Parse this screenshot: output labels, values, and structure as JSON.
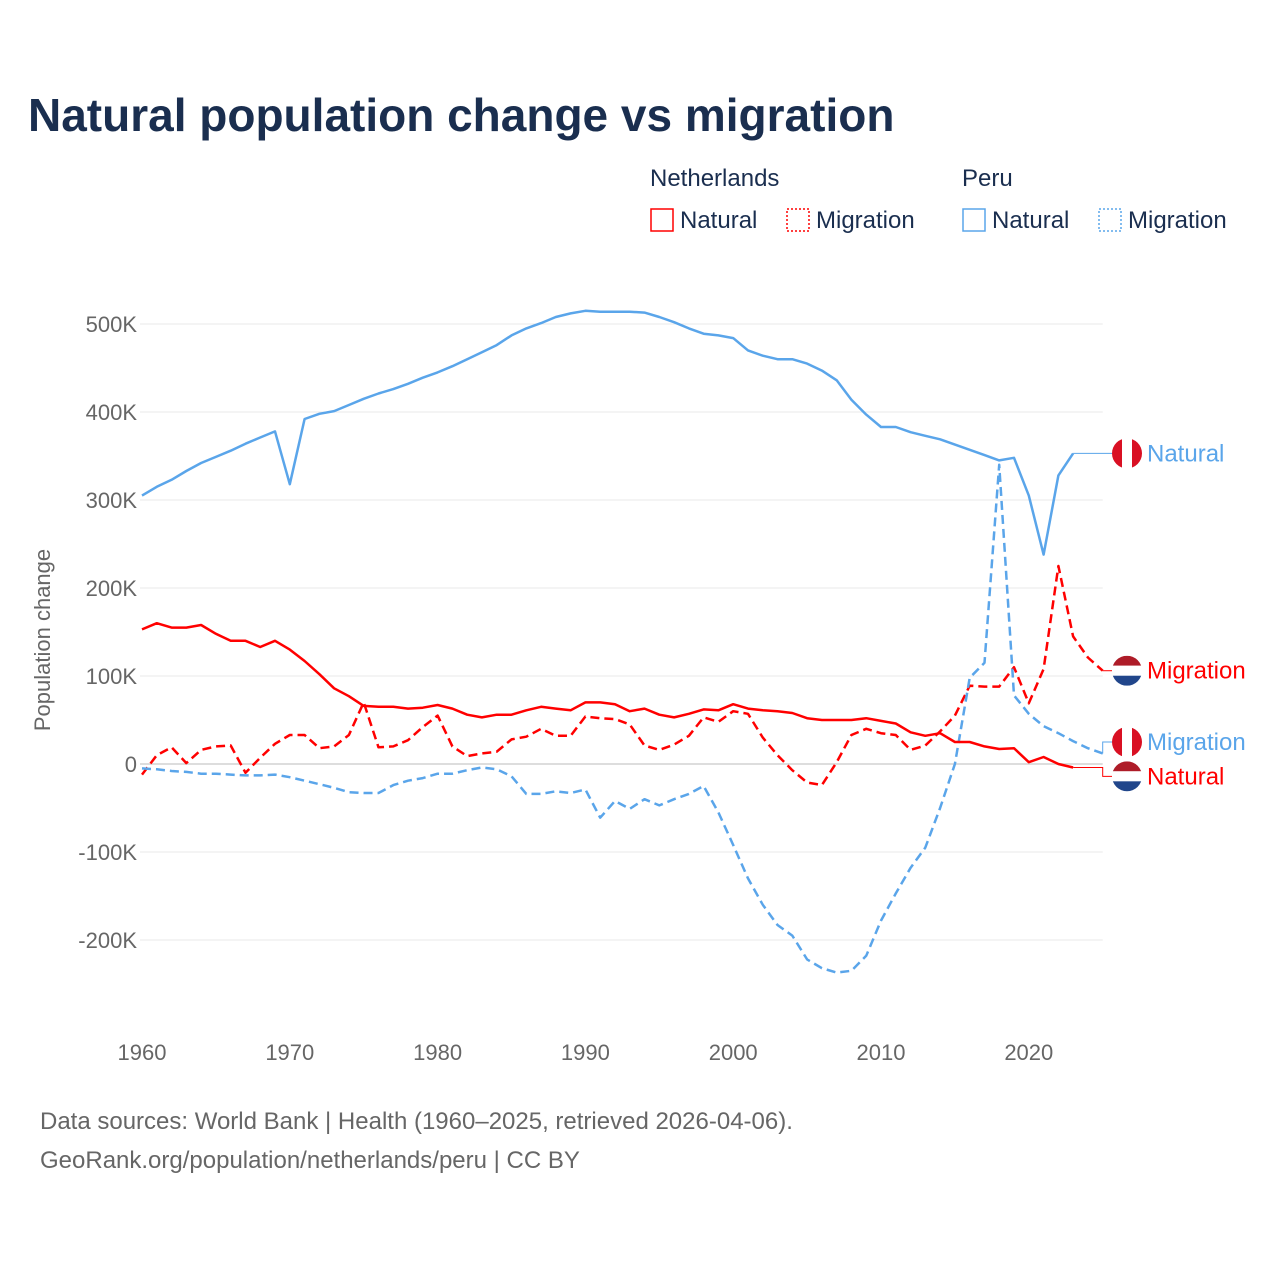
{
  "title": "Natural population change vs migration",
  "footer": {
    "line1": "Data sources: World Bank | Health (1960–2025, retrieved 2026-04-06).",
    "line2": "GeoRank.org/population/netherlands/peru | CC BY"
  },
  "colors": {
    "netherlands": "#ff0000",
    "peru": "#5aa5ea",
    "text": "#1a2e4f",
    "axis": "#666666"
  },
  "chart_data": {
    "type": "line",
    "title": "Natural population change vs migration",
    "xlabel": "",
    "ylabel": "Population change",
    "xlim": [
      1960,
      2025
    ],
    "ylim": [
      -270000,
      540000
    ],
    "grid": true,
    "xticks": [
      1960,
      1970,
      1980,
      1990,
      2000,
      2010,
      2020
    ],
    "xtick_labels": [
      "1960",
      "1970",
      "1980",
      "1990",
      "2000",
      "2010",
      "2020"
    ],
    "yticks": [
      -200000,
      -100000,
      0,
      100000,
      200000,
      300000,
      400000,
      500000
    ],
    "ytick_labels": [
      "-200K",
      "-100K",
      "0",
      "100K",
      "200K",
      "300K",
      "400K",
      "500K"
    ],
    "legend": {
      "placement": "top-right",
      "groups": [
        {
          "country": "Netherlands",
          "items": [
            "Natural",
            "Migration"
          ]
        },
        {
          "country": "Peru",
          "items": [
            "Natural",
            "Migration"
          ]
        }
      ]
    },
    "x_start": 1960,
    "series": [
      {
        "name": "Peru Natural",
        "country": "peru",
        "style": "solid",
        "end_label": "Natural",
        "label_y": 353,
        "values": [
          305,
          315,
          323,
          333,
          342,
          349,
          356,
          364,
          371,
          378,
          318,
          392,
          398,
          401,
          408,
          415,
          421,
          426,
          432,
          439,
          445,
          452,
          460,
          468,
          476,
          487,
          495,
          501,
          508,
          512,
          515,
          514,
          514,
          514,
          513,
          508,
          502,
          495,
          489,
          487,
          484,
          470,
          464,
          460,
          460,
          455,
          447,
          436,
          414,
          397,
          383,
          383,
          377,
          373,
          369,
          363,
          357,
          351,
          345,
          348,
          305,
          238,
          328,
          353
        ]
      },
      {
        "name": "Netherlands Migration",
        "country": "netherlands",
        "style": "dashed",
        "end_label": "Migration",
        "label_y": 106,
        "values": [
          -12,
          10,
          19,
          1,
          16,
          20,
          21,
          -10,
          7,
          23,
          33,
          33,
          18,
          20,
          33,
          70,
          19,
          20,
          27,
          42,
          55,
          20,
          9,
          12,
          14,
          28,
          31,
          40,
          32,
          32,
          54,
          52,
          51,
          45,
          21,
          16,
          22,
          32,
          53,
          48,
          60,
          57,
          30,
          10,
          -7,
          -21,
          -24,
          2,
          33,
          40,
          35,
          33,
          16,
          21,
          37,
          55,
          89,
          88,
          88,
          110,
          69,
          108,
          225,
          145,
          121,
          106
        ]
      },
      {
        "name": "Peru Migration",
        "country": "peru",
        "style": "dashed",
        "end_label": "Migration",
        "label_y": 25,
        "values": [
          -5,
          -6,
          -8,
          -9,
          -11,
          -11,
          -12,
          -13,
          -13,
          -12,
          -15,
          -19,
          -23,
          -27,
          -32,
          -33,
          -33,
          -24,
          -19,
          -16,
          -11,
          -11,
          -7,
          -4,
          -6,
          -14,
          -34,
          -34,
          -31,
          -33,
          -29,
          -61,
          -42,
          -51,
          -40,
          -47,
          -40,
          -34,
          -25,
          -55,
          -92,
          -130,
          -160,
          -183,
          -195,
          -222,
          -232,
          -237,
          -235,
          -218,
          -178,
          -147,
          -118,
          -95,
          -50,
          0,
          98,
          115,
          340,
          78,
          57,
          43,
          35,
          26,
          18,
          12
        ]
      },
      {
        "name": "Netherlands Natural",
        "country": "netherlands",
        "style": "solid",
        "end_label": "Natural",
        "label_y": -14,
        "values": [
          153,
          160,
          155,
          155,
          158,
          148,
          140,
          140,
          133,
          140,
          130,
          117,
          102,
          86,
          77,
          66,
          65,
          65,
          63,
          64,
          67,
          63,
          56,
          53,
          56,
          56,
          61,
          65,
          63,
          61,
          70,
          70,
          68,
          60,
          63,
          56,
          53,
          57,
          62,
          61,
          68,
          63,
          61,
          60,
          58,
          52,
          50,
          50,
          50,
          52,
          49,
          46,
          36,
          32,
          35,
          25,
          25,
          20,
          17,
          18,
          2,
          8,
          0,
          -4
        ]
      }
    ],
    "value_units": "thousands"
  }
}
